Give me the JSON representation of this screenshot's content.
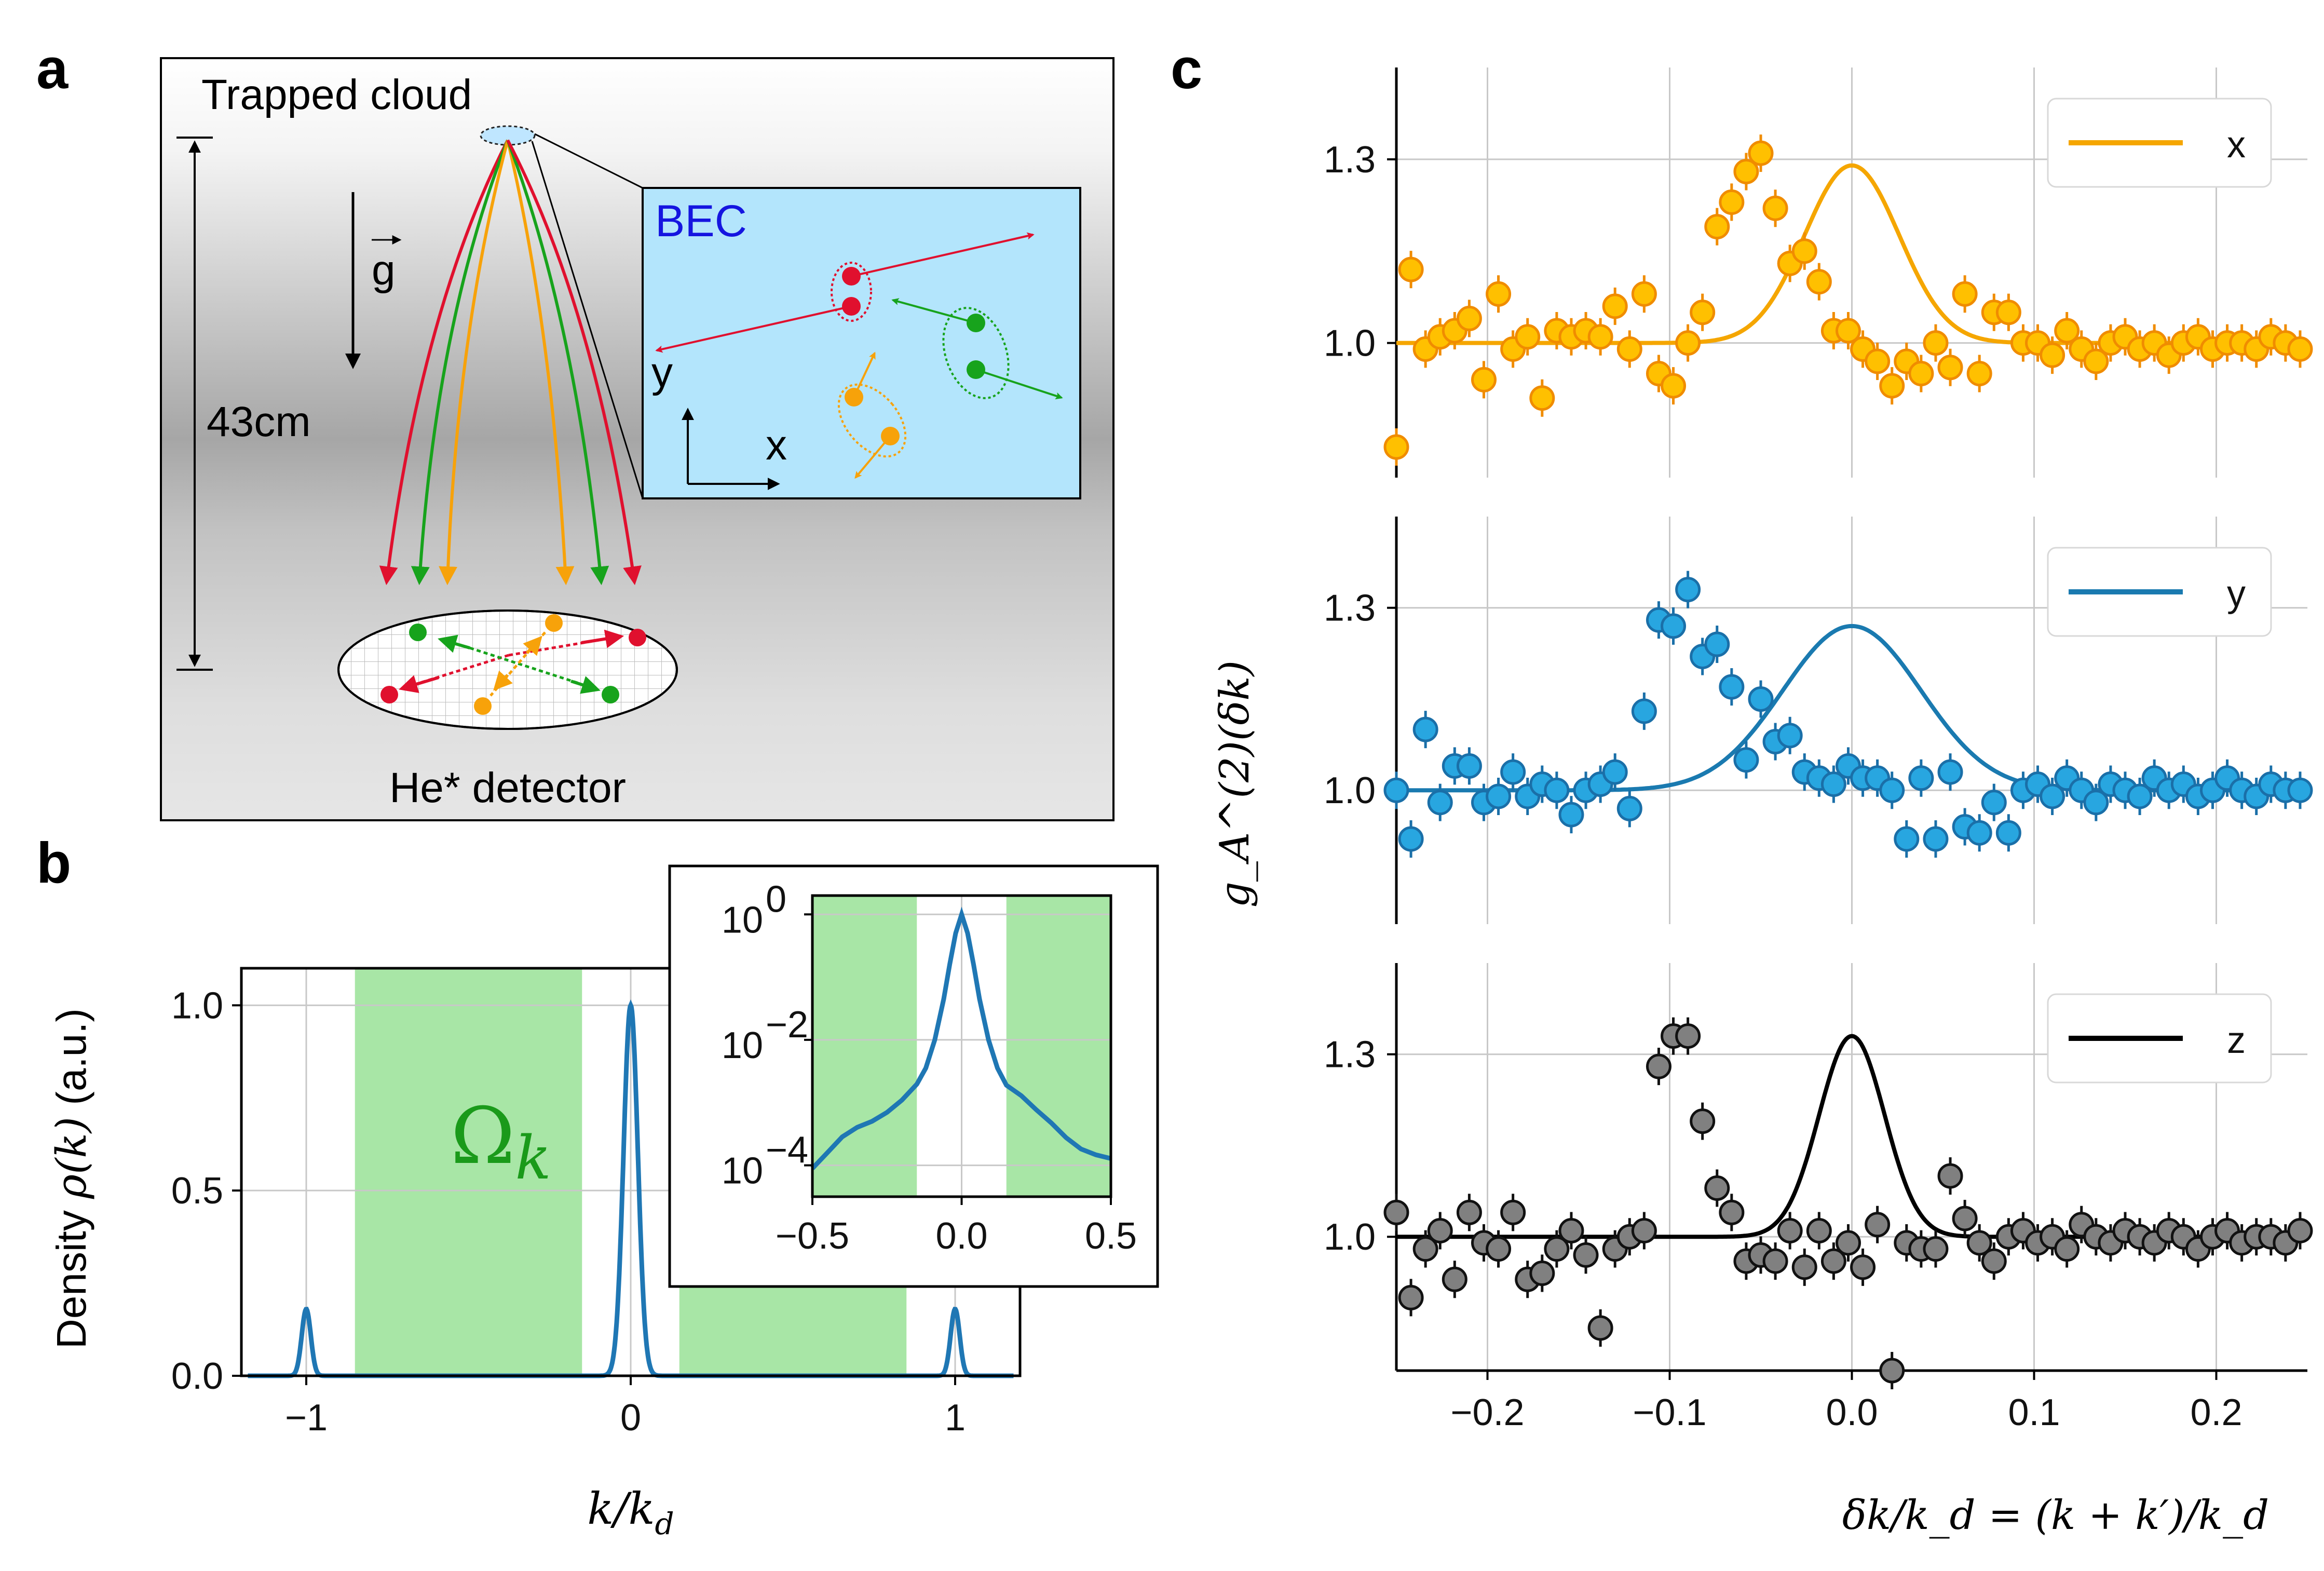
{
  "panel_labels": {
    "a": "a",
    "b": "b",
    "c": "c"
  },
  "colors": {
    "red": "#e0102e",
    "green": "#17a31c",
    "orange": "#f7a20a",
    "blue": "#1f77b4",
    "black": "#000000",
    "bec_bg": "#b3e5fc",
    "green_band": "#a8e6a6",
    "x_marker": "#ffc000",
    "y_marker": "#28a6e0",
    "z_marker": "#808080",
    "x_line": "#f5a600",
    "y_line": "#1a7ab0"
  },
  "schematic": {
    "trapped_cloud": "Trapped cloud",
    "gravity_label": "g",
    "height_label": "43cm",
    "detector_label": "He* detector",
    "inset": {
      "title": "BEC",
      "axis_x": "x",
      "axis_y": "y"
    },
    "icons": [
      "gravity-arrow-icon",
      "axis-arrows-icon"
    ]
  },
  "chart_data": [
    {
      "id": "b-main",
      "type": "line",
      "title": "",
      "xlabel": "k/k",
      "xlabel_sub": "d",
      "ylabel": "Density",
      "ylabel_math": "ρ(k)",
      "ylabel_units": "(a.u.)",
      "xlim": [
        -1.2,
        1.2
      ],
      "ylim": [
        0.0,
        1.1
      ],
      "xticks": [
        -1,
        0,
        1
      ],
      "xtick_labels": [
        "−1",
        "0",
        "1"
      ],
      "yticks": [
        0.0,
        0.5,
        1.0
      ],
      "ytick_labels": [
        "0.0",
        "0.5",
        "1.0"
      ],
      "region_label": "Ω",
      "region_label_sub": "k",
      "shaded_regions": [
        [
          -0.85,
          -0.15
        ],
        [
          0.15,
          0.85
        ]
      ],
      "peaks": [
        {
          "center": -1.0,
          "amplitude": 0.18,
          "sigma": 0.014
        },
        {
          "center": 0.0,
          "amplitude": 1.0,
          "sigma": 0.022
        },
        {
          "center": 1.0,
          "amplitude": 0.18,
          "sigma": 0.014
        }
      ]
    },
    {
      "id": "b-inset",
      "type": "line",
      "yscale": "log",
      "xlim": [
        -0.5,
        0.5
      ],
      "ylim_log10": [
        -4.5,
        0.3
      ],
      "xticks": [
        -0.5,
        0.0,
        0.5
      ],
      "xtick_labels": [
        "−0.5",
        "0.0",
        "0.5"
      ],
      "yticks_log10": [
        0,
        -2,
        -4
      ],
      "ytick_base": "10",
      "ytick_exps": [
        "0",
        "−2",
        "−4"
      ],
      "shaded_regions": [
        [
          -0.5,
          -0.15
        ],
        [
          0.15,
          0.5
        ]
      ],
      "curve": {
        "x": [
          -0.5,
          -0.45,
          -0.4,
          -0.35,
          -0.3,
          -0.25,
          -0.2,
          -0.15,
          -0.12,
          -0.09,
          -0.06,
          -0.04,
          -0.02,
          0.0,
          0.02,
          0.04,
          0.06,
          0.09,
          0.12,
          0.15,
          0.2,
          0.25,
          0.3,
          0.35,
          0.4,
          0.45,
          0.5
        ],
        "log10_y": [
          -4.05,
          -3.85,
          -3.6,
          -3.4,
          -3.25,
          -3.1,
          -2.95,
          -2.75,
          -2.45,
          -2.0,
          -1.35,
          -0.8,
          -0.3,
          0.0,
          -0.3,
          -0.8,
          -1.35,
          -2.0,
          -2.45,
          -2.75,
          -2.95,
          -3.15,
          -3.3,
          -3.5,
          -3.7,
          -3.85,
          -3.95
        ]
      }
    },
    {
      "id": "c",
      "type": "scatter",
      "xlabel_math": "δk/k_d = (k + k′)/k_d",
      "ylabel_math": "g_A^(2)(δk)",
      "xlim": [
        -0.25,
        0.25
      ],
      "ylim": [
        0.78,
        1.45
      ],
      "xticks": [
        -0.2,
        -0.1,
        0.0,
        0.1,
        0.2
      ],
      "xtick_labels": [
        "−0.2",
        "−0.1",
        "0.0",
        "0.1",
        "0.2"
      ],
      "yticks": [
        1.0,
        1.3
      ],
      "ytick_labels": [
        "1.0",
        "1.3"
      ],
      "x": [
        -0.25,
        -0.242,
        -0.234,
        -0.226,
        -0.218,
        -0.21,
        -0.202,
        -0.194,
        -0.186,
        -0.178,
        -0.17,
        -0.162,
        -0.154,
        -0.146,
        -0.138,
        -0.13,
        -0.122,
        -0.114,
        -0.106,
        -0.098,
        -0.09,
        -0.082,
        -0.074,
        -0.066,
        -0.058,
        -0.05,
        -0.042,
        -0.034,
        -0.026,
        -0.018,
        -0.01,
        -0.002,
        0.006,
        0.014,
        0.022,
        0.03,
        0.038,
        0.046,
        0.054,
        0.062,
        0.07,
        0.078,
        0.086,
        0.094,
        0.102,
        0.11,
        0.118,
        0.126,
        0.134,
        0.142,
        0.15,
        0.158,
        0.166,
        0.174,
        0.182,
        0.19,
        0.198,
        0.206,
        0.214,
        0.222,
        0.23,
        0.238,
        0.246
      ],
      "series": [
        {
          "name": "x",
          "amplitude": 0.29,
          "sigma": 0.026,
          "values": [
            0.83,
            1.12,
            0.99,
            1.01,
            1.02,
            1.04,
            0.94,
            1.08,
            0.99,
            1.01,
            0.91,
            1.02,
            1.01,
            1.02,
            1.01,
            1.06,
            0.99,
            1.08,
            0.95,
            0.93,
            1.0,
            1.05,
            1.19,
            1.23,
            1.28,
            1.31,
            1.22,
            1.13,
            1.15,
            1.1,
            1.02,
            1.02,
            0.99,
            0.97,
            0.93,
            0.97,
            0.95,
            1.0,
            0.96,
            1.08,
            0.95,
            1.05,
            1.05,
            1.0,
            1.0,
            0.98,
            1.02,
            0.99,
            0.97,
            1.0,
            1.01,
            0.99,
            1.0,
            0.98,
            1.0,
            1.01,
            0.99,
            1.0,
            1.0,
            0.99,
            1.01,
            1.0,
            0.99
          ]
        },
        {
          "name": "y",
          "amplitude": 0.27,
          "sigma": 0.038,
          "values": [
            1.0,
            0.92,
            1.1,
            0.98,
            1.04,
            1.04,
            0.98,
            0.99,
            1.03,
            0.99,
            1.01,
            1.0,
            0.96,
            1.0,
            1.01,
            1.03,
            0.97,
            1.13,
            1.28,
            1.27,
            1.33,
            1.22,
            1.24,
            1.17,
            1.05,
            1.15,
            1.08,
            1.09,
            1.03,
            1.02,
            1.01,
            1.04,
            1.02,
            1.02,
            1.0,
            0.92,
            1.02,
            0.92,
            1.03,
            0.94,
            0.93,
            0.98,
            0.93,
            1.0,
            1.01,
            0.99,
            1.02,
            1.0,
            0.98,
            1.01,
            1.0,
            0.99,
            1.02,
            1.0,
            1.01,
            0.99,
            1.0,
            1.02,
            1.0,
            0.99,
            1.01,
            1.0,
            1.0
          ]
        },
        {
          "name": "z",
          "amplitude": 0.33,
          "sigma": 0.018,
          "values": [
            1.04,
            0.9,
            0.98,
            1.01,
            0.93,
            1.04,
            0.99,
            0.98,
            1.04,
            0.93,
            0.94,
            0.98,
            1.01,
            0.97,
            0.85,
            0.98,
            1.0,
            1.01,
            1.28,
            1.33,
            1.33,
            1.19,
            1.08,
            1.04,
            0.96,
            0.97,
            0.96,
            1.01,
            0.95,
            1.01,
            0.96,
            0.99,
            0.95,
            1.02,
            0.78,
            0.99,
            0.98,
            0.98,
            1.1,
            1.03,
            0.99,
            0.96,
            1.0,
            1.01,
            0.99,
            1.0,
            0.98,
            1.02,
            1.0,
            0.99,
            1.01,
            1.0,
            0.99,
            1.01,
            1.0,
            0.98,
            1.0,
            1.01,
            0.99,
            1.0,
            1.0,
            0.99,
            1.01
          ]
        }
      ]
    }
  ]
}
